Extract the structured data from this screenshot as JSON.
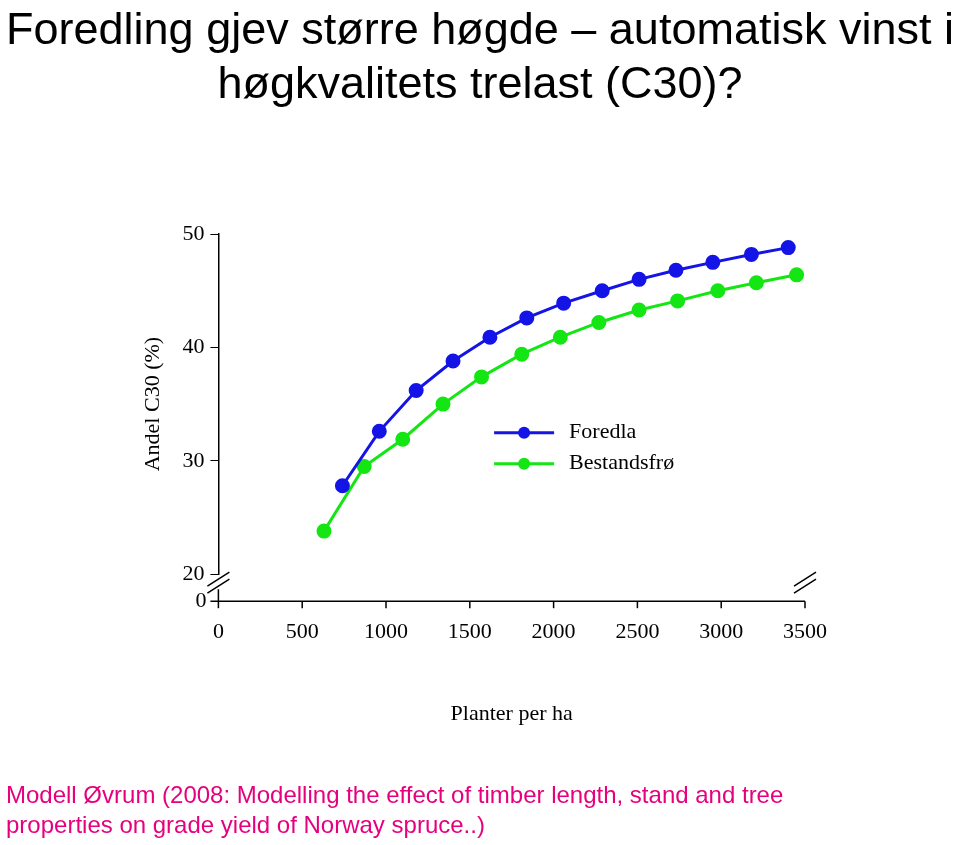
{
  "chart_data": {
    "type": "line",
    "title": "Foredling gjev større høgde – automatisk vinst i høgkvalitets trelast (C30)?",
    "caption": "Modell Øvrum (2008: Modelling the effect of timber length, stand and tree properties on grade yield of Norway spruce..)",
    "x_label": "Planter per ha",
    "y_label": "Andel C30 (%)",
    "xlim": [
      0,
      3500
    ],
    "xticks": [
      0,
      500,
      1000,
      1500,
      2000,
      2500,
      3000,
      3500
    ],
    "ylim": [
      20,
      50
    ],
    "yticks": [
      20,
      30,
      40,
      50
    ],
    "y_break": [
      0,
      20
    ],
    "grid": false,
    "legend": "right",
    "series": [
      {
        "name": "Foredla",
        "color": "#1414e6",
        "marker": "circle",
        "line_style": "solid",
        "x": [
          740,
          960,
          1180,
          1400,
          1620,
          1840,
          2060,
          2290,
          2510,
          2730,
          2950,
          3180,
          3400
        ],
        "values": [
          27.8,
          32.6,
          36.2,
          38.8,
          40.9,
          42.6,
          43.9,
          45.0,
          46.0,
          46.8,
          47.5,
          48.2,
          48.8
        ]
      },
      {
        "name": "Bestandsfrø",
        "color": "#14e614",
        "marker": "circle",
        "line_style": "solid",
        "x": [
          630,
          870,
          1100,
          1340,
          1570,
          1810,
          2040,
          2270,
          2510,
          2740,
          2980,
          3210,
          3450
        ],
        "values": [
          23.8,
          29.5,
          31.9,
          35.0,
          37.4,
          39.4,
          40.9,
          42.2,
          43.3,
          44.1,
          45.0,
          45.7,
          46.4
        ]
      }
    ]
  }
}
